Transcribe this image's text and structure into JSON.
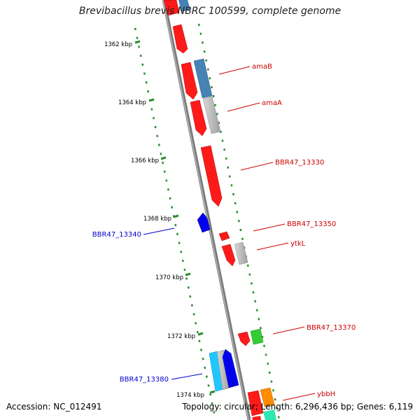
{
  "title": "Brevibacillus brevis NBRC 100599, complete genome",
  "footer": {
    "accession": "Accession: NC_012491",
    "topology": "Topology: circular;",
    "length": "Length: 6,296,436 bp;",
    "genes": "Genes: 6,119"
  },
  "colors": {
    "backbone": "#8a8a8a",
    "ticks": "#2e8b2e",
    "forward_gene": "#ff0000",
    "reverse_label": "#0000cc",
    "forward_label": "#cc0000"
  },
  "ticks": [
    "1362 kbp",
    "1364 kbp",
    "1366 kbp",
    "1368 kbp",
    "1370 kbp",
    "1372 kbp",
    "1374 kbp"
  ],
  "gene_labels": [
    {
      "id": "amaB",
      "text": "amaB",
      "strand": "forward"
    },
    {
      "id": "amaA",
      "text": "amaA",
      "strand": "forward"
    },
    {
      "id": "bbr47-13330",
      "text": "BBR47_13330",
      "strand": "forward"
    },
    {
      "id": "bbr47-13350",
      "text": "BBR47_13350",
      "strand": "forward"
    },
    {
      "id": "ytkl",
      "text": "ytkL",
      "strand": "forward"
    },
    {
      "id": "bbr47-13340",
      "text": "BBR47_13340",
      "strand": "reverse"
    },
    {
      "id": "bbr47-13370",
      "text": "BBR47_13370",
      "strand": "forward"
    },
    {
      "id": "bbr47-13380",
      "text": "BBR47_13380",
      "strand": "reverse"
    },
    {
      "id": "ybbh",
      "text": "ybbH",
      "strand": "forward"
    }
  ]
}
